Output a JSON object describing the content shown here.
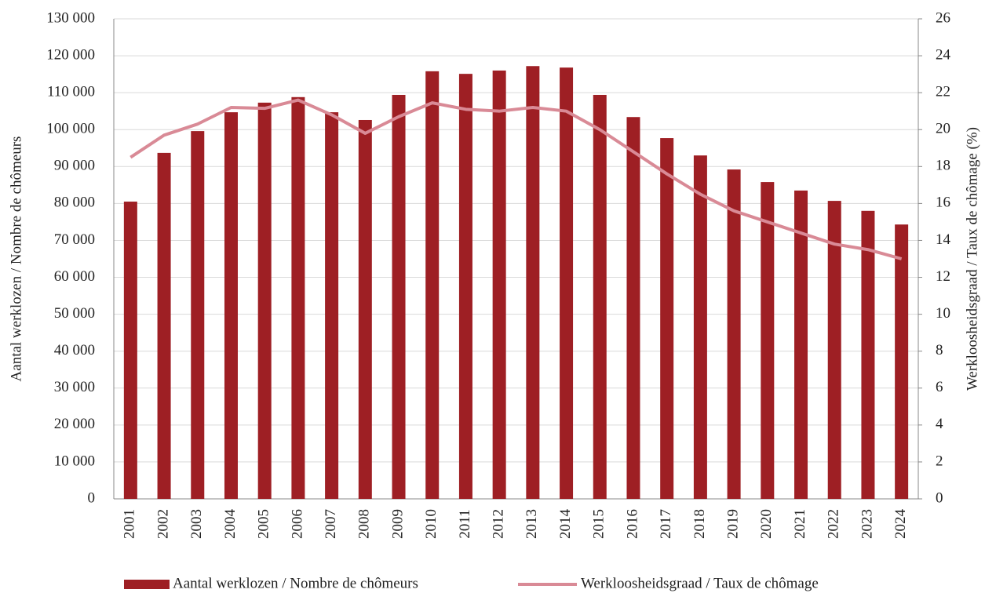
{
  "chart_data": {
    "type": "bar",
    "categories": [
      "2001",
      "2002",
      "2003",
      "2004",
      "2005",
      "2006",
      "2007",
      "2008",
      "2009",
      "2010",
      "2011",
      "2012",
      "2013",
      "2014",
      "2015",
      "2016",
      "2017",
      "2018",
      "2019",
      "2020",
      "2021",
      "2022",
      "2023",
      "2024"
    ],
    "series": [
      {
        "name": "Aantal werklozen / Nombre de chômeurs",
        "type": "bar",
        "color": "#9e1f24",
        "values": [
          80500,
          93700,
          99600,
          104700,
          107300,
          108800,
          104700,
          102600,
          109400,
          115800,
          115100,
          116000,
          117200,
          116800,
          109400,
          103400,
          97700,
          93000,
          89200,
          85800,
          83500,
          80700,
          78000,
          74300
        ]
      },
      {
        "name": "Werkloosheidsgraad / Taux de chômage",
        "type": "line",
        "axis": "y2",
        "color": "#d98a96",
        "values": [
          18.5,
          19.7,
          20.3,
          21.2,
          21.15,
          21.6,
          20.8,
          19.8,
          20.7,
          21.45,
          21.1,
          21.0,
          21.2,
          21.0,
          20.0,
          18.8,
          17.6,
          16.5,
          15.6,
          15.0,
          14.4,
          13.8,
          13.5,
          13.0
        ]
      }
    ],
    "ylabel": "Aantal werklozen / Nombre de chômeurs",
    "y2label": "Werkloosheidsgraad / Taux de chômage (%)",
    "ylim": [
      0,
      130000
    ],
    "yticks": [
      0,
      {
        "value": 10000,
        "label": "10 000"
      },
      {
        "value": 20000,
        "label": "20 000"
      },
      {
        "value": 30000,
        "label": "30 000"
      },
      {
        "value": 40000,
        "label": "40 000"
      },
      {
        "value": 50000,
        "label": "50 000"
      },
      {
        "value": 60000,
        "label": "60 000"
      },
      {
        "value": 70000,
        "label": "70 000"
      },
      {
        "value": 80000,
        "label": "80 000"
      },
      {
        "value": 90000,
        "label": "90 000"
      },
      {
        "value": 100000,
        "label": "100 000"
      },
      {
        "value": 110000,
        "label": "110 000"
      },
      {
        "value": 120000,
        "label": "120 000"
      },
      {
        "value": 130000,
        "label": "130 000"
      }
    ],
    "y2lim": [
      0,
      26
    ],
    "y2ticks": [
      0,
      2,
      4,
      6,
      8,
      10,
      12,
      14,
      16,
      18,
      20,
      22,
      24,
      26
    ],
    "grid": true,
    "legend": "bottom"
  }
}
